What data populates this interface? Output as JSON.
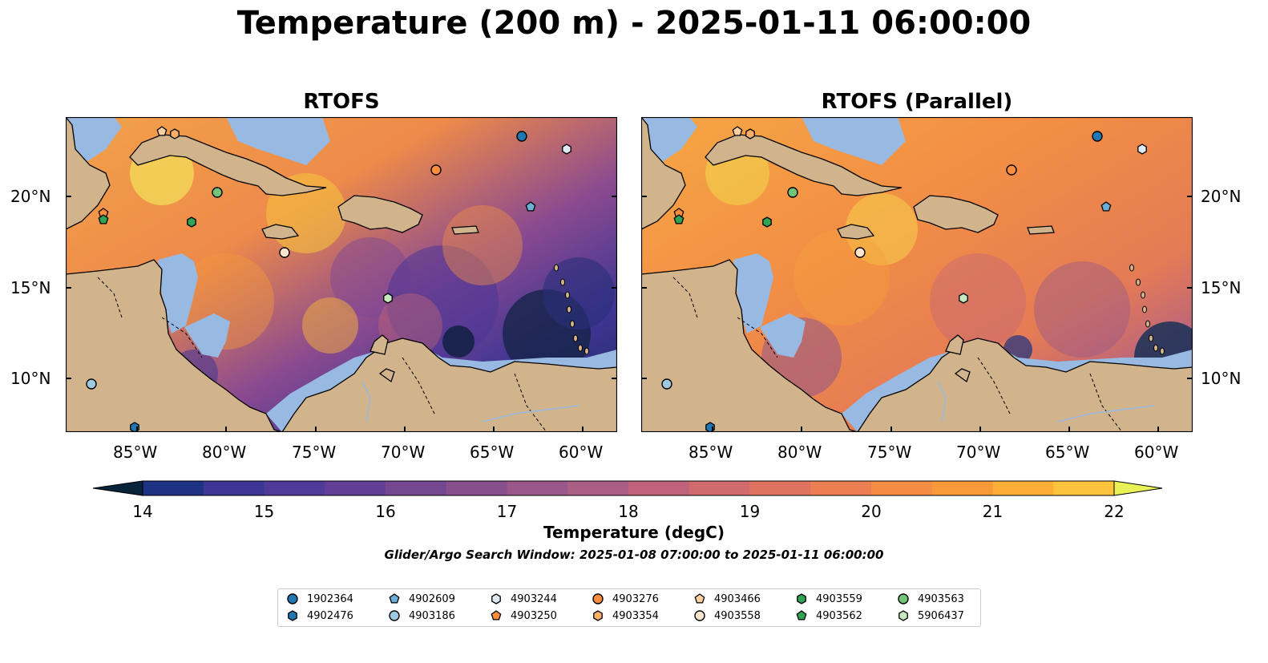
{
  "title": "Temperature (200 m) - 2025-01-11 06:00:00",
  "panels": [
    {
      "title": "RTOFS"
    },
    {
      "title": "RTOFS (Parallel)"
    }
  ],
  "axes": {
    "lon_ticks": [
      "85°W",
      "80°W",
      "75°W",
      "70°W",
      "65°W",
      "60°W"
    ],
    "lat_ticks": [
      "20°N",
      "15°N",
      "10°N"
    ]
  },
  "colorbar": {
    "label": "Temperature (degC)",
    "ticks": [
      "14",
      "15",
      "16",
      "17",
      "18",
      "19",
      "20",
      "21",
      "22"
    ],
    "range": [
      14,
      22
    ],
    "colors": [
      "#09243a",
      "#0d2d56",
      "#1d3282",
      "#3b3596",
      "#503a99",
      "#633e96",
      "#754790",
      "#87508d",
      "#9a588a",
      "#ac5f84",
      "#c0637a",
      "#d06b6d",
      "#de7460",
      "#ec7f52",
      "#f48c43",
      "#f99a38",
      "#fcae37",
      "#fcc33c",
      "#f5d94a",
      "#eaf157"
    ]
  },
  "search_window": "Glider/Argo Search Window: 2025-01-08 07:00:00 to 2025-01-11 06:00:00",
  "legend": [
    {
      "id": "1902364",
      "marker": "circle",
      "color": "#1f77b4"
    },
    {
      "id": "4902476",
      "marker": "hexagon",
      "color": "#1f77b4"
    },
    {
      "id": "4902609",
      "marker": "pentagon",
      "color": "#6baed6"
    },
    {
      "id": "4903186",
      "marker": "circle",
      "color": "#9ecae1"
    },
    {
      "id": "4903244",
      "marker": "hexagon",
      "color": "#deebf7"
    },
    {
      "id": "4903250",
      "marker": "pentagon",
      "color": "#fd8d3c"
    },
    {
      "id": "4903276",
      "marker": "circle",
      "color": "#fd8d3c"
    },
    {
      "id": "4903354",
      "marker": "hexagon",
      "color": "#fdae6b"
    },
    {
      "id": "4903466",
      "marker": "pentagon",
      "color": "#fdd0a2"
    },
    {
      "id": "4903558",
      "marker": "circle",
      "color": "#fee6ce"
    },
    {
      "id": "4903559",
      "marker": "hexagon",
      "color": "#31a354"
    },
    {
      "id": "4903562",
      "marker": "pentagon",
      "color": "#31a354"
    },
    {
      "id": "4903563",
      "marker": "circle",
      "color": "#74c476"
    },
    {
      "id": "5906437",
      "marker": "hexagon",
      "color": "#c7e9c0"
    }
  ]
}
